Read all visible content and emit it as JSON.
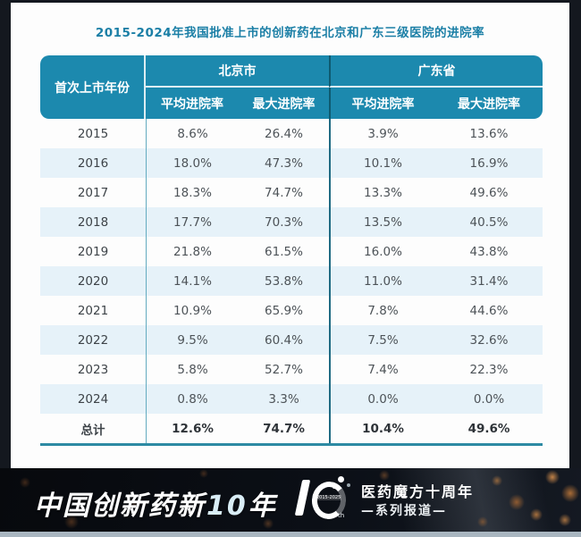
{
  "title": "2015-2024年我国批准上市的创新药在北京和广东三级医院的进院率",
  "table": {
    "col_year": "首次上市年份",
    "group_beijing": "北京市",
    "group_guangdong": "广东省",
    "sub_avg_bj": "平均进院率",
    "sub_max_bj": "最大进院率",
    "sub_avg_gd": "平均进院率",
    "sub_max_gd": "最大进院率",
    "rows": [
      {
        "year": "2015",
        "bj_avg": "8.6%",
        "bj_max": "26.4%",
        "gd_avg": "3.9%",
        "gd_max": "13.6%"
      },
      {
        "year": "2016",
        "bj_avg": "18.0%",
        "bj_max": "47.3%",
        "gd_avg": "10.1%",
        "gd_max": "16.9%"
      },
      {
        "year": "2017",
        "bj_avg": "18.3%",
        "bj_max": "74.7%",
        "gd_avg": "13.3%",
        "gd_max": "49.6%"
      },
      {
        "year": "2018",
        "bj_avg": "17.7%",
        "bj_max": "70.3%",
        "gd_avg": "13.5%",
        "gd_max": "40.5%"
      },
      {
        "year": "2019",
        "bj_avg": "21.8%",
        "bj_max": "61.5%",
        "gd_avg": "16.0%",
        "gd_max": "43.8%"
      },
      {
        "year": "2020",
        "bj_avg": "14.1%",
        "bj_max": "53.8%",
        "gd_avg": "11.0%",
        "gd_max": "31.4%"
      },
      {
        "year": "2021",
        "bj_avg": "10.9%",
        "bj_max": "65.9%",
        "gd_avg": "7.8%",
        "gd_max": "44.6%"
      },
      {
        "year": "2022",
        "bj_avg": "9.5%",
        "bj_max": "60.4%",
        "gd_avg": "7.5%",
        "gd_max": "32.6%"
      },
      {
        "year": "2023",
        "bj_avg": "5.8%",
        "bj_max": "52.7%",
        "gd_avg": "7.4%",
        "gd_max": "22.3%"
      },
      {
        "year": "2024",
        "bj_avg": "0.8%",
        "bj_max": "3.3%",
        "gd_avg": "0.0%",
        "gd_max": "0.0%"
      }
    ],
    "total": {
      "year": "总计",
      "bj_avg": "12.6%",
      "bj_max": "74.7%",
      "gd_avg": "10.4%",
      "gd_max": "49.6%"
    }
  },
  "chart_data": {
    "type": "table",
    "title": "2015-2024年我国批准上市的创新药在北京和广东三级医院的进院率",
    "column_groups": [
      "北京市",
      "广东省"
    ],
    "columns": [
      "首次上市年份",
      "北京市 平均进院率",
      "北京市 最大进院率",
      "广东省 平均进院率",
      "广东省 最大进院率"
    ],
    "unit": "%",
    "rows": [
      [
        "2015",
        8.6,
        26.4,
        3.9,
        13.6
      ],
      [
        "2016",
        18.0,
        47.3,
        10.1,
        16.9
      ],
      [
        "2017",
        18.3,
        74.7,
        13.3,
        49.6
      ],
      [
        "2018",
        17.7,
        70.3,
        13.5,
        40.5
      ],
      [
        "2019",
        21.8,
        61.5,
        16.0,
        43.8
      ],
      [
        "2020",
        14.1,
        53.8,
        11.0,
        31.4
      ],
      [
        "2021",
        10.9,
        65.9,
        7.8,
        44.6
      ],
      [
        "2022",
        9.5,
        60.4,
        7.5,
        32.6
      ],
      [
        "2023",
        5.8,
        52.7,
        7.4,
        22.3
      ],
      [
        "2024",
        0.8,
        3.3,
        0.0,
        0.0
      ],
      [
        "总计",
        12.6,
        74.7,
        10.4,
        49.6
      ]
    ]
  },
  "banner": {
    "slogan_prefix": "中国创新药新",
    "slogan_number": "10",
    "slogan_suffix": "年",
    "logo_years": "2015-2025",
    "logo_th": "th",
    "brand_line1": "医药魔方十周年",
    "brand_line2": "—系列报道—"
  },
  "colors": {
    "header_teal": "#1c89ae",
    "title_teal": "#1b7fa6",
    "row_alt_blue": "#e6f2f9",
    "table_border_teal": "#2d8aa3",
    "banner_bg": "#0b0f16",
    "bokeh_orange": "#d68c46"
  }
}
